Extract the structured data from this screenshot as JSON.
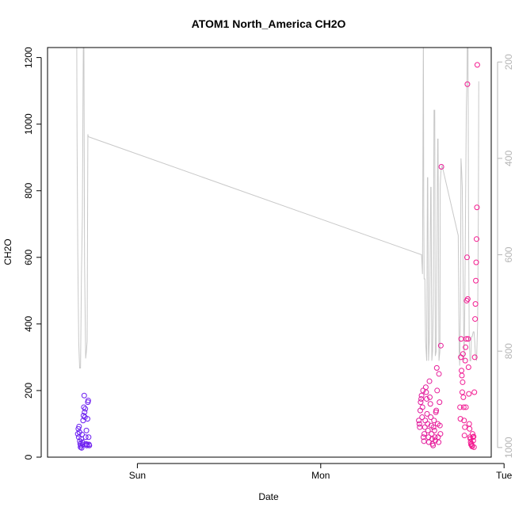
{
  "chart_data": {
    "type": "scatter",
    "title": "ATOM1 North_America CH2O",
    "xlabel": "Date",
    "ylabel": "CH2O",
    "ylim": [
      0,
      1230
    ],
    "yticks": [
      0,
      200,
      400,
      600,
      800,
      1000,
      1200
    ],
    "xlim": [
      -0.49,
      1.93
    ],
    "xticks": [
      {
        "label": "Sun",
        "value": 0
      },
      {
        "label": "Mon",
        "value": 1
      },
      {
        "label": "Tue",
        "value": 2
      }
    ],
    "y2lim": [
      1020,
      170
    ],
    "y2ticks": [
      200,
      400,
      600,
      800,
      1000
    ],
    "y2_reversed": true,
    "grid": false,
    "colors": {
      "line": "#c8c8c8",
      "points_start": "#6a1ff2",
      "points_end": "#f51a8f",
      "right_axis": "#b5b5b5"
    },
    "series": [
      {
        "type": "scatter",
        "points": [
          [
            -0.325,
            70
          ],
          [
            -0.322,
            85
          ],
          [
            -0.32,
            60
          ],
          [
            -0.318,
            92
          ],
          [
            -0.316,
            75
          ],
          [
            -0.314,
            48
          ],
          [
            -0.312,
            40
          ],
          [
            -0.31,
            30
          ],
          [
            -0.308,
            35
          ],
          [
            -0.306,
            55
          ],
          [
            -0.304,
            28
          ],
          [
            -0.302,
            68
          ],
          [
            -0.3,
            45
          ],
          [
            -0.298,
            38
          ],
          [
            -0.296,
            110
          ],
          [
            -0.294,
            125
          ],
          [
            -0.292,
            150
          ],
          [
            -0.29,
            185
          ],
          [
            -0.288,
            135
          ],
          [
            -0.286,
            120
          ],
          [
            -0.284,
            145
          ],
          [
            -0.282,
            60
          ],
          [
            -0.28,
            40
          ],
          [
            -0.278,
            80
          ],
          [
            -0.276,
            35
          ],
          [
            -0.274,
            38
          ],
          [
            -0.272,
            115
          ],
          [
            -0.27,
            165
          ],
          [
            -0.268,
            170
          ],
          [
            -0.266,
            60
          ],
          [
            -0.264,
            38
          ],
          [
            -0.262,
            35
          ],
          [
            1.535,
            110
          ],
          [
            1.538,
            100
          ],
          [
            1.54,
            90
          ],
          [
            1.543,
            140
          ],
          [
            1.545,
            165
          ],
          [
            1.548,
            175
          ],
          [
            1.55,
            185
          ],
          [
            1.553,
            120
          ],
          [
            1.555,
            150
          ],
          [
            1.558,
            200
          ],
          [
            1.56,
            60
          ],
          [
            1.563,
            48
          ],
          [
            1.565,
            70
          ],
          [
            1.568,
            90
          ],
          [
            1.57,
            110
          ],
          [
            1.573,
            210
          ],
          [
            1.575,
            195
          ],
          [
            1.578,
            175
          ],
          [
            1.58,
            130
          ],
          [
            1.583,
            100
          ],
          [
            1.585,
            80
          ],
          [
            1.588,
            60
          ],
          [
            1.59,
            45
          ],
          [
            1.593,
            228
          ],
          [
            1.595,
            180
          ],
          [
            1.598,
            160
          ],
          [
            1.6,
            120
          ],
          [
            1.603,
            95
          ],
          [
            1.605,
            70
          ],
          [
            1.608,
            55
          ],
          [
            1.61,
            40
          ],
          [
            1.613,
            35
          ],
          [
            1.615,
            90
          ],
          [
            1.618,
            110
          ],
          [
            1.62,
            80
          ],
          [
            1.623,
            60
          ],
          [
            1.625,
            50
          ],
          [
            1.628,
            135
          ],
          [
            1.63,
            140
          ],
          [
            1.633,
            268
          ],
          [
            1.635,
            200
          ],
          [
            1.638,
            100
          ],
          [
            1.64,
            60
          ],
          [
            1.643,
            45
          ],
          [
            1.645,
            250
          ],
          [
            1.648,
            165
          ],
          [
            1.65,
            95
          ],
          [
            1.653,
            70
          ],
          [
            1.655,
            335
          ],
          [
            1.658,
            872
          ],
          [
            1.76,
            150
          ],
          [
            1.762,
            115
          ],
          [
            1.764,
            300
          ],
          [
            1.766,
            355
          ],
          [
            1.768,
            260
          ],
          [
            1.77,
            245
          ],
          [
            1.772,
            195
          ],
          [
            1.774,
            225
          ],
          [
            1.776,
            310
          ],
          [
            1.778,
            180
          ],
          [
            1.78,
            150
          ],
          [
            1.782,
            110
          ],
          [
            1.784,
            65
          ],
          [
            1.786,
            90
          ],
          [
            1.788,
            290
          ],
          [
            1.79,
            330
          ],
          [
            1.792,
            150
          ],
          [
            1.794,
            355
          ],
          [
            1.796,
            470
          ],
          [
            1.798,
            600
          ],
          [
            1.8,
            1120
          ],
          [
            1.802,
            475
          ],
          [
            1.804,
            355
          ],
          [
            1.806,
            270
          ],
          [
            1.808,
            190
          ],
          [
            1.81,
            100
          ],
          [
            1.812,
            85
          ],
          [
            1.814,
            60
          ],
          [
            1.816,
            55
          ],
          [
            1.818,
            45
          ],
          [
            1.82,
            38
          ],
          [
            1.822,
            40
          ],
          [
            1.824,
            35
          ],
          [
            1.826,
            32
          ],
          [
            1.828,
            70
          ],
          [
            1.83,
            60
          ],
          [
            1.832,
            50
          ],
          [
            1.834,
            62
          ],
          [
            1.836,
            30
          ],
          [
            1.838,
            195
          ],
          [
            1.84,
            300
          ],
          [
            1.842,
            415
          ],
          [
            1.844,
            460
          ],
          [
            1.846,
            530
          ],
          [
            1.848,
            585
          ],
          [
            1.85,
            655
          ],
          [
            1.852,
            750
          ],
          [
            1.854,
            1178
          ]
        ]
      },
      {
        "type": "line",
        "axis": "right",
        "points": [
          [
            -0.331,
            120
          ],
          [
            -0.329,
            360
          ],
          [
            -0.325,
            600
          ],
          [
            -0.32,
            780
          ],
          [
            -0.315,
            835
          ],
          [
            -0.31,
            835
          ],
          [
            -0.305,
            640
          ],
          [
            -0.3,
            520
          ],
          [
            -0.296,
            240
          ],
          [
            -0.294,
            120
          ],
          [
            -0.292,
            120
          ],
          [
            -0.288,
            620
          ],
          [
            -0.282,
            815
          ],
          [
            -0.278,
            800
          ],
          [
            -0.274,
            780
          ],
          [
            -0.27,
            350
          ],
          [
            -0.268,
            355
          ],
          [
            1.55,
            600
          ],
          [
            1.555,
            640
          ],
          [
            1.56,
            120
          ],
          [
            1.562,
            500
          ],
          [
            1.564,
            650
          ],
          [
            1.568,
            650
          ],
          [
            1.572,
            780
          ],
          [
            1.578,
            820
          ],
          [
            1.582,
            440
          ],
          [
            1.584,
            440
          ],
          [
            1.588,
            820
          ],
          [
            1.592,
            780
          ],
          [
            1.596,
            640
          ],
          [
            1.6,
            460
          ],
          [
            1.602,
            460
          ],
          [
            1.606,
            820
          ],
          [
            1.61,
            800
          ],
          [
            1.614,
            700
          ],
          [
            1.618,
            300
          ],
          [
            1.622,
            300
          ],
          [
            1.625,
            810
          ],
          [
            1.63,
            800
          ],
          [
            1.634,
            600
          ],
          [
            1.638,
            360
          ],
          [
            1.64,
            360
          ],
          [
            1.645,
            820
          ],
          [
            1.65,
            800
          ],
          [
            1.652,
            455
          ],
          [
            1.655,
            430
          ],
          [
            1.658,
            420
          ],
          [
            1.662,
            415
          ],
          [
            1.75,
            560
          ],
          [
            1.752,
            650
          ],
          [
            1.755,
            800
          ],
          [
            1.758,
            830
          ],
          [
            1.762,
            720
          ],
          [
            1.765,
            400
          ],
          [
            1.768,
            420
          ],
          [
            1.772,
            460
          ],
          [
            1.778,
            700
          ],
          [
            1.782,
            820
          ],
          [
            1.786,
            700
          ],
          [
            1.79,
            500
          ],
          [
            1.794,
            300
          ],
          [
            1.798,
            230
          ],
          [
            1.8,
            120
          ],
          [
            1.803,
            120
          ],
          [
            1.806,
            500
          ],
          [
            1.81,
            780
          ],
          [
            1.814,
            820
          ],
          [
            1.818,
            820
          ],
          [
            1.822,
            770
          ],
          [
            1.826,
            770
          ],
          [
            1.832,
            760
          ],
          [
            1.836,
            760
          ],
          [
            1.84,
            780
          ],
          [
            1.844,
            810
          ],
          [
            1.85,
            820
          ],
          [
            1.856,
            740
          ],
          [
            1.86,
            500
          ],
          [
            1.862,
            240
          ]
        ]
      }
    ]
  }
}
